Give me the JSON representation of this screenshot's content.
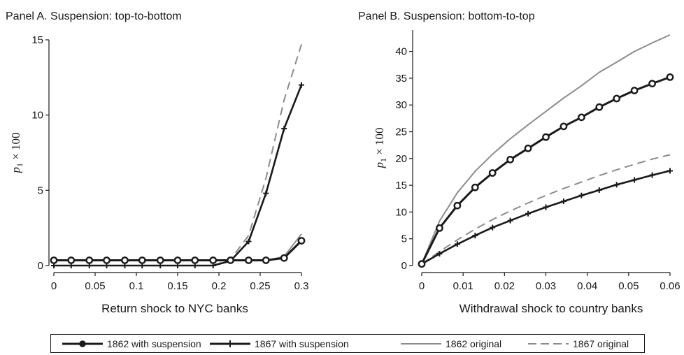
{
  "chart_data": [
    {
      "type": "line",
      "title": "Panel A. Suspension: top-to-bottom",
      "xlabel": "Return shock to NYC banks",
      "ylabel": "p1 × 100",
      "xlim": [
        0,
        0.3
      ],
      "ylim": [
        0,
        15
      ],
      "x_ticks": [
        "0",
        "0.05",
        "0.1",
        "0.15",
        "0.2",
        "0.25",
        "0.3"
      ],
      "y_ticks": [
        "0",
        "5",
        "10",
        "15"
      ],
      "x": [
        0,
        0.021,
        0.043,
        0.064,
        0.086,
        0.107,
        0.129,
        0.15,
        0.171,
        0.193,
        0.214,
        0.236,
        0.257,
        0.279,
        0.3
      ],
      "series": [
        {
          "name": "1862 with suspension",
          "values": [
            0.35,
            0.35,
            0.35,
            0.35,
            0.35,
            0.35,
            0.35,
            0.35,
            0.35,
            0.35,
            0.35,
            0.35,
            0.35,
            0.5,
            1.65
          ]
        },
        {
          "name": "1867 with suspension",
          "values": [
            0,
            0,
            0,
            0,
            0,
            0,
            0,
            0,
            0,
            0,
            0.3,
            1.6,
            4.8,
            9.1,
            12.0
          ]
        },
        {
          "name": "1862 original",
          "values": [
            0.35,
            0.35,
            0.35,
            0.35,
            0.35,
            0.35,
            0.35,
            0.35,
            0.35,
            0.35,
            0.35,
            0.35,
            0.35,
            0.6,
            2.1
          ]
        },
        {
          "name": "1867 original",
          "values": [
            0,
            0,
            0,
            0,
            0,
            0,
            0,
            0,
            0,
            0,
            0.4,
            2.0,
            5.8,
            11.0,
            14.7
          ]
        }
      ]
    },
    {
      "type": "line",
      "title": "Panel B. Suspension: bottom-to-top",
      "xlabel": "Withdrawal shock to country banks",
      "ylabel": "p1 × 100",
      "xlim": [
        0,
        0.06
      ],
      "ylim": [
        0,
        44
      ],
      "x_ticks": [
        "0",
        "0.01",
        "0.02",
        "0.03",
        "0.04",
        "0.05",
        "0.06"
      ],
      "y_ticks": [
        "0",
        "5",
        "10",
        "15",
        "20",
        "25",
        "30",
        "35",
        "40"
      ],
      "x": [
        0,
        0.0043,
        0.0086,
        0.0129,
        0.0171,
        0.0214,
        0.0257,
        0.03,
        0.0343,
        0.0386,
        0.0429,
        0.0471,
        0.0514,
        0.0557,
        0.06
      ],
      "series": [
        {
          "name": "1862 with suspension",
          "values": [
            0.3,
            7.0,
            11.2,
            14.6,
            17.3,
            19.8,
            21.9,
            24.0,
            26.0,
            27.7,
            29.6,
            31.2,
            32.7,
            34.0,
            35.2
          ]
        },
        {
          "name": "1867 with suspension",
          "values": [
            0.3,
            2.2,
            4.0,
            5.6,
            7.1,
            8.4,
            9.7,
            10.9,
            12.0,
            13.1,
            14.1,
            15.1,
            16.0,
            16.9,
            17.7
          ]
        },
        {
          "name": "1862 original",
          "values": [
            0.3,
            8.3,
            13.6,
            17.6,
            20.8,
            23.7,
            26.3,
            28.8,
            31.3,
            33.6,
            36.1,
            38.0,
            40.0,
            41.6,
            43.1
          ]
        },
        {
          "name": "1867 original",
          "values": [
            0.3,
            2.6,
            4.8,
            6.8,
            8.6,
            10.2,
            11.7,
            13.1,
            14.4,
            15.6,
            16.8,
            17.9,
            18.9,
            19.9,
            20.7
          ]
        }
      ]
    }
  ],
  "legend": [
    {
      "label": "1862 with suspension",
      "style": "solid-thick-circle"
    },
    {
      "label": "1867 with suspension",
      "style": "solid-thick-plus"
    },
    {
      "label": "1862 original",
      "style": "solid-thin-gray"
    },
    {
      "label": "1867 original",
      "style": "dashed-gray"
    }
  ],
  "colors": {
    "black": "#1a1a1a",
    "gray": "#8c8c8c"
  }
}
